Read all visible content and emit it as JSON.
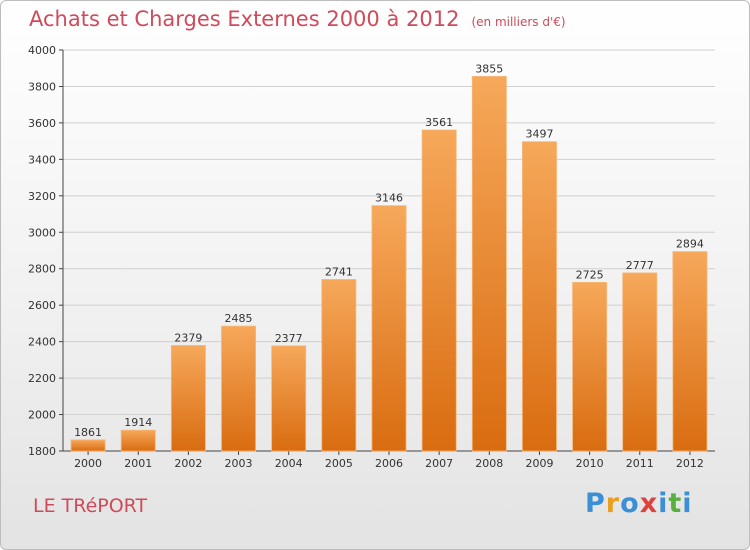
{
  "title": "Achats et Charges Externes 2000 à 2012",
  "subtitle": "(en milliers d'€)",
  "commune": "LE TRéPORT",
  "logo": {
    "letters": [
      "P",
      "r",
      "o",
      "x",
      "i",
      "t",
      "i"
    ],
    "colors": [
      "#3b8fd6",
      "#e8a020",
      "#3b8fd6",
      "#e04040",
      "#3b8fd6",
      "#58b040",
      "#3b8fd6"
    ]
  },
  "colors": {
    "bar_light": "#f6a85a",
    "bar_dark": "#d96c10",
    "accent": "#d04a5a"
  },
  "chart_data": {
    "type": "bar",
    "categories": [
      "2000",
      "2001",
      "2002",
      "2003",
      "2004",
      "2005",
      "2006",
      "2007",
      "2008",
      "2009",
      "2010",
      "2011",
      "2012"
    ],
    "values": [
      1861,
      1914,
      2379,
      2485,
      2377,
      2741,
      3146,
      3561,
      3855,
      3497,
      2725,
      2777,
      2894
    ],
    "yticks": [
      1800,
      2000,
      2200,
      2400,
      2600,
      2800,
      3000,
      3200,
      3400,
      3600,
      3800,
      4000
    ],
    "ylim": [
      1800,
      4000
    ],
    "grid": true,
    "xlabel": "",
    "ylabel": ""
  }
}
